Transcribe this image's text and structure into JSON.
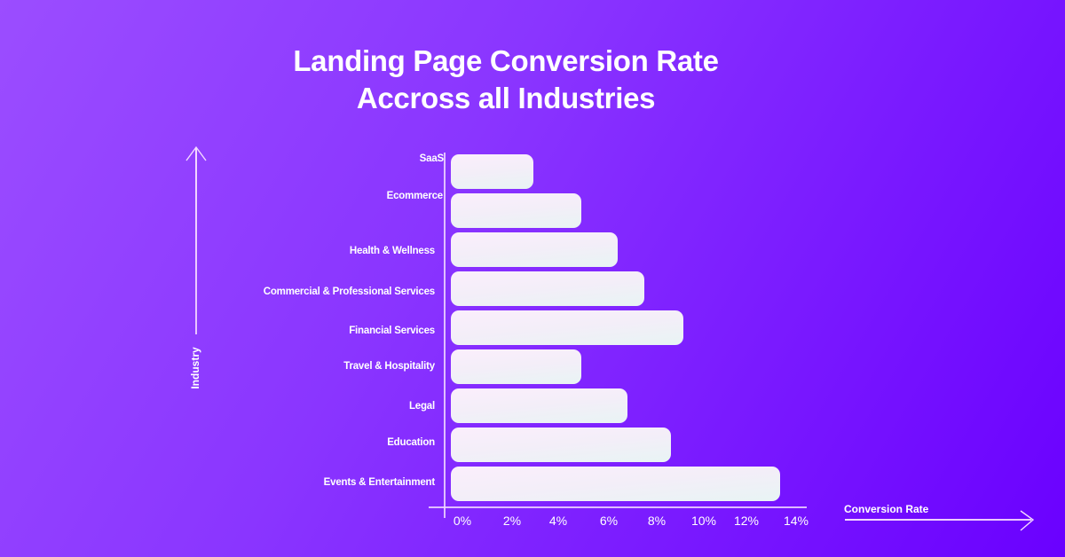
{
  "title": {
    "line1": "Landing Page Conversion Rate",
    "line2": "Accross all Industries"
  },
  "y_axis": {
    "label": "Industry"
  },
  "x_axis": {
    "label": "Conversion Rate",
    "ticks": [
      "0%",
      "2%",
      "4%",
      "6%",
      "8%",
      "10%",
      "12%",
      "14%"
    ]
  },
  "colors": {
    "background_start": "#9b4dff",
    "background_end": "#6a00ff",
    "bar_fill": "#f3eef8",
    "axis": "#f0d7ff",
    "text": "#ffffff"
  },
  "chart_data": {
    "type": "bar",
    "orientation": "horizontal",
    "title": "Landing Page Conversion Rate Accross all Industries",
    "xlabel": "Conversion Rate",
    "ylabel": "Industry",
    "categories": [
      "SaaS",
      "Ecommerce",
      "Health & Wellness",
      "Commercial & Professional Services",
      "Financial Services",
      "Travel & Hospitality",
      "Legal",
      "Education",
      "Events & Entertainment"
    ],
    "values": [
      3.4,
      5.4,
      6.9,
      8.0,
      9.6,
      5.4,
      7.3,
      9.1,
      13.6
    ],
    "unit": "%",
    "xlim": [
      0,
      14
    ],
    "x_ticks": [
      "0%",
      "2%",
      "4%",
      "6%",
      "8%",
      "10%",
      "12%",
      "14%"
    ],
    "grid": false,
    "legend": null
  }
}
